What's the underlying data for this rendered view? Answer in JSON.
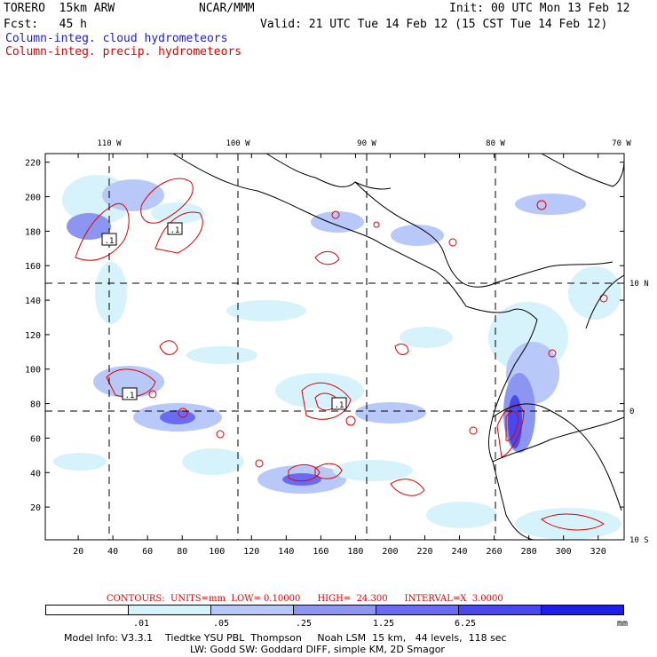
{
  "header": {
    "model": "TORERO  15km ARW",
    "org": "NCAR/MMM",
    "init": "Init: 00 UTC Mon 13 Feb 12",
    "fcst": "Fcst:   45 h",
    "valid": "Valid: 21 UTC Tue 14 Feb 12 (15 CST Tue 14 Feb 12)",
    "field1": "Column-integ. cloud hydrometeors",
    "field2": "Column-integ. precip. hydrometeors"
  },
  "colors": {
    "cloud": "#2020d0",
    "precip": "#e00000",
    "shade": [
      "#ffffff",
      "#d6f2fb",
      "#b8c8f8",
      "#8c96f0",
      "#6a6af2",
      "#4848ee",
      "#1e1ee8"
    ]
  },
  "chart_data": {
    "type": "heatmap",
    "title": "Column-integ. cloud hydrometeors / Column-integ. precip. hydrometeors",
    "x_ticks": [
      "20",
      "40",
      "60",
      "80",
      "100",
      "120",
      "140",
      "160",
      "180",
      "200",
      "220",
      "240",
      "260",
      "280",
      "300",
      "320"
    ],
    "y_ticks": [
      "20",
      "40",
      "60",
      "80",
      "100",
      "120",
      "140",
      "160",
      "180",
      "200",
      "220"
    ],
    "xlim": [
      1,
      335
    ],
    "ylim": [
      1,
      225
    ],
    "lon_labels": [
      "110 W",
      "100 W",
      "90 W",
      "80 W",
      "70 W"
    ],
    "lat_labels": [
      "10 N",
      "0",
      "10 S"
    ],
    "contour_labels": [
      ".1",
      ".1",
      ".1",
      ".1"
    ],
    "contours": {
      "label": "CONTOURS:  UNITS=mm  LOW= 0.10000      HIGH=  24.300      INTERVAL=X  3.0000",
      "units": "mm",
      "low": 0.1,
      "high": 24.3,
      "interval_factor": 3.0
    },
    "shading_levels": [
      ".01",
      ".05",
      ".25",
      "1.25",
      "6.25"
    ],
    "shading_units": "mm"
  },
  "footer": {
    "line1": "Model Info: V3.3.1    Tiedtke YSU PBL  Thompson     Noah LSM  15 km,   44 levels,  118 sec",
    "line2": "LW: Godd SW: Goddard DIFF, simple KM, 2D Smagor"
  }
}
